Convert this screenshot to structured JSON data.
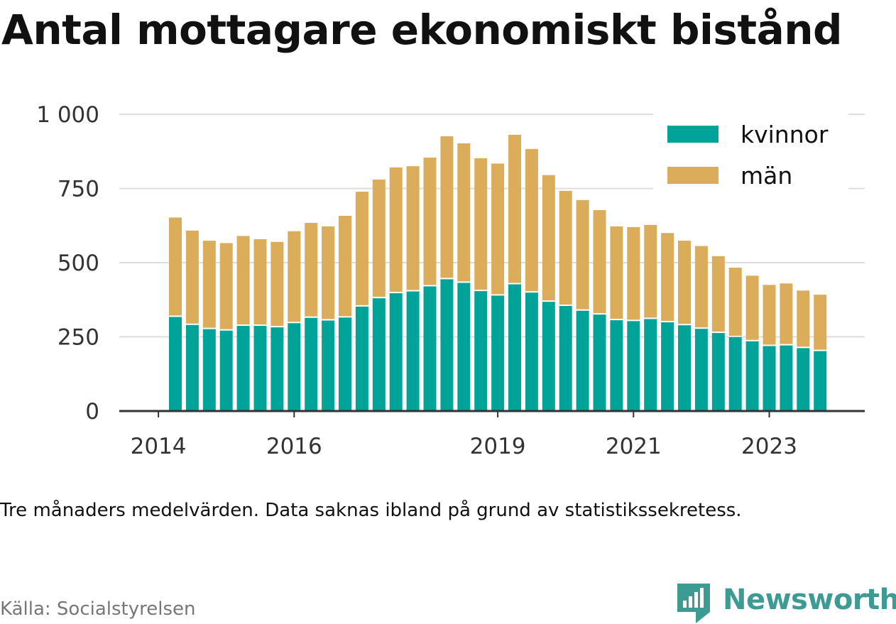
{
  "title": "Antal mottagare ekonomiskt bistånd",
  "note": "Tre månaders medelvärden. Data saknas ibland på grund av statistikssekretess.",
  "source": "Källa: Socialstyrelsen",
  "brand": "Newsworthy",
  "colors": {
    "kvinnor": "#00a398",
    "man": "#dbac5a",
    "brand": "#3e9b94",
    "grid": "#dddddd",
    "axis": "#333333"
  },
  "chart_data": {
    "type": "bar",
    "stacked": true,
    "x_unit": "quarter",
    "x": [
      "2014-Q2",
      "2014-Q3",
      "2014-Q4",
      "2015-Q1",
      "2015-Q2",
      "2015-Q3",
      "2015-Q4",
      "2016-Q1",
      "2016-Q2",
      "2016-Q3",
      "2016-Q4",
      "2017-Q1",
      "2017-Q2",
      "2017-Q3",
      "2017-Q4",
      "2018-Q1",
      "2018-Q2",
      "2018-Q3",
      "2018-Q4",
      "2019-Q1",
      "2019-Q2",
      "2019-Q3",
      "2019-Q4",
      "2020-Q1",
      "2020-Q2",
      "2020-Q3",
      "2020-Q4",
      "2021-Q1",
      "2021-Q2",
      "2021-Q3",
      "2021-Q4",
      "2022-Q1",
      "2022-Q2",
      "2022-Q3",
      "2022-Q4",
      "2023-Q1",
      "2023-Q2",
      "2023-Q3",
      "2023-Q4"
    ],
    "series": [
      {
        "name": "kvinnor",
        "values": [
          317,
          290,
          276,
          271,
          287,
          287,
          282,
          296,
          314,
          305,
          315,
          352,
          380,
          397,
          403,
          420,
          444,
          432,
          404,
          389,
          427,
          399,
          368,
          354,
          338,
          325,
          306,
          303,
          310,
          299,
          289,
          277,
          263,
          249,
          235,
          219,
          221,
          212,
          202
        ]
      },
      {
        "name": "män",
        "values": [
          335,
          318,
          298,
          295,
          303,
          292,
          288,
          310,
          320,
          317,
          343,
          387,
          400,
          424,
          422,
          434,
          482,
          470,
          448,
          445,
          504,
          484,
          427,
          388,
          373,
          352,
          316,
          317,
          317,
          301,
          285,
          279,
          259,
          234,
          221,
          206,
          209,
          194,
          190
        ]
      }
    ],
    "xticks": [
      {
        "label": "2014",
        "value": "2014-Q1"
      },
      {
        "label": "2016",
        "value": "2016-Q1"
      },
      {
        "label": "2019",
        "value": "2019-Q1"
      },
      {
        "label": "2021",
        "value": "2021-Q1"
      },
      {
        "label": "2023",
        "value": "2023-Q1"
      }
    ],
    "yticks": [
      {
        "value": 0,
        "label": "0"
      },
      {
        "value": 250,
        "label": "250"
      },
      {
        "value": 500,
        "label": "500"
      },
      {
        "value": 750,
        "label": "750"
      },
      {
        "value": 1000,
        "label": "1 000"
      }
    ],
    "ylim": [
      0,
      1000
    ],
    "grid": true,
    "legend_position": "top-right"
  }
}
